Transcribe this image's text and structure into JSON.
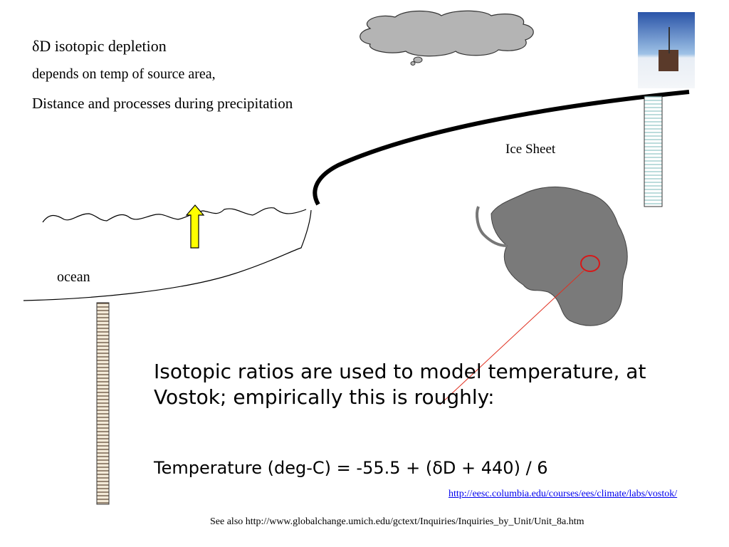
{
  "heading": {
    "line1": "δD isotopic depletion",
    "line2": "depends on temp of source area,",
    "line3": "Distance and processes during precipitation"
  },
  "labels": {
    "ice_sheet": "Ice Sheet",
    "ocean": "ocean"
  },
  "body": {
    "text": "Isotopic ratios are used to model temperature, at Vostok; empirically this is roughly:",
    "equation": "Temperature (deg-C) = -55.5 + (δD + 440) / 6"
  },
  "links": {
    "primary": "http://eesc.columbia.edu/courses/ees/climate/labs/vostok/",
    "see_also": "See also http://www.globalchange.umich.edu/gctext/Inquiries/Inquiries_by_Unit/Unit_8a.htm"
  }
}
